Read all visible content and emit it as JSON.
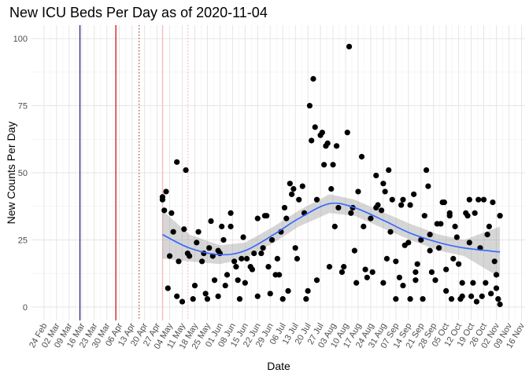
{
  "chart_data": {
    "type": "scatter",
    "title": "New ICU Beds Per Day as of 2020-11-04",
    "x_label": "Date",
    "y_label": "New Counts Per Day",
    "grid": true,
    "color": "#000000",
    "xlim": [
      "17 Feb",
      "18 Nov"
    ],
    "xticks": [
      "24 Feb",
      "02 Mar",
      "09 Mar",
      "16 Mar",
      "23 Mar",
      "30 Mar",
      "06 Apr",
      "13 Apr",
      "20 Apr",
      "27 Apr",
      "04 May",
      "11 May",
      "18 May",
      "25 May",
      "01 Jun",
      "08 Jun",
      "15 Jun",
      "22 Jun",
      "29 Jun",
      "06 Jul",
      "13 Jul",
      "20 Jul",
      "27 Jul",
      "03 Aug",
      "10 Aug",
      "17 Aug",
      "24 Aug",
      "31 Aug",
      "07 Sep",
      "14 Sep",
      "21 Sep",
      "28 Sep",
      "05 Oct",
      "12 Oct",
      "19 Oct",
      "26 Oct",
      "02 Nov",
      "09 Nov",
      "16 Nov"
    ],
    "ylim": [
      -5,
      105
    ],
    "yticks": [
      0,
      25,
      50,
      75,
      100
    ],
    "x": [
      "30 Apr",
      "30 Apr",
      "1 May",
      "2 May",
      "4 May",
      "3 May",
      "5 May",
      "6 May",
      "8 May",
      "8 May",
      "9 May",
      "11 May",
      "12 May",
      "13 May",
      "14 May",
      "15 May",
      "17 May",
      "18 May",
      "19 May",
      "20 May",
      "22 May",
      "23 May",
      "24 May",
      "25 May",
      "26 May",
      "27 May",
      "28 May",
      "29 May",
      "31 May",
      "31 May",
      "1 Jun",
      "2 Jun",
      "3 Jun",
      "4 Jun",
      "5 Jun",
      "7 Jun",
      "7 Jun",
      "9 Jun",
      "10 Jun",
      "11 Jun",
      "12 Jun",
      "13 Jun",
      "14 Jun",
      "15 Jun",
      "16 Jun",
      "18 Jun",
      "19 Jun",
      "20 Jun",
      "22 Jun",
      "22 Jun",
      "24 Jun",
      "25 Jun",
      "26 Jun",
      "27 Jun",
      "28 Jun",
      "29 Jun",
      "30 Jun",
      "2 Jul",
      "3 Jul",
      "4 Jul",
      "5 Jul",
      "6 Jul",
      "7 Jul",
      "8 Jul",
      "9 Jul",
      "10 Jul",
      "11 Jul",
      "12 Jul",
      "13 Jul",
      "14 Jul",
      "15 Jul",
      "17 Jul",
      "18 Jul",
      "19 Jul",
      "20 Jul",
      "21 Jul",
      "22 Jul",
      "23 Jul",
      "24 Jul",
      "25 Jul",
      "25 Jul",
      "27 Jul",
      "28 Jul",
      "29 Jul",
      "30 Jul",
      "31 Jul",
      "1 Aug",
      "2 Aug",
      "3 Aug",
      "4 Aug",
      "5 Aug",
      "6 Aug",
      "8 Aug",
      "9 Aug",
      "11 Aug",
      "12 Aug",
      "13 Aug",
      "14 Aug",
      "15 Aug",
      "16 Aug",
      "17 Aug",
      "19 Aug",
      "20 Aug",
      "21 Aug",
      "22 Aug",
      "24 Aug",
      "25 Aug",
      "27 Aug",
      "27 Aug",
      "28 Aug",
      "30 Aug",
      "31 Aug",
      "31 Aug",
      "1 Sep",
      "2 Sep",
      "3 Sep",
      "4 Sep",
      "5 Sep",
      "7 Sep",
      "7 Sep",
      "9 Sep",
      "10 Sep",
      "11 Sep",
      "11 Sep",
      "12 Sep",
      "14 Sep",
      "15 Sep",
      "15 Sep",
      "17 Sep",
      "18 Sep",
      "18 Sep",
      "19 Sep",
      "21 Sep",
      "22 Sep",
      "23 Sep",
      "24 Sep",
      "25 Sep",
      "26 Sep",
      "26 Sep",
      "27 Sep",
      "29 Sep",
      "30 Sep",
      "1 Oct",
      "2 Oct",
      "3 Oct",
      "4 Oct",
      "5 Oct",
      "5 Oct",
      "7 Oct",
      "7 Oct",
      "8 Oct",
      "9 Oct",
      "10 Oct",
      "11 Oct",
      "12 Oct",
      "13 Oct",
      "14 Oct",
      "14 Oct",
      "16 Oct",
      "17 Oct",
      "18 Oct",
      "18 Oct",
      "19 Oct",
      "20 Oct",
      "21 Oct",
      "22 Oct",
      "23 Oct",
      "24 Oct",
      "25 Oct",
      "26 Oct",
      "27 Oct",
      "28 Oct",
      "29 Oct",
      "30 Oct",
      "31 Oct",
      "1 Nov",
      "2 Nov",
      "2 Nov",
      "3 Nov",
      "4 Nov",
      "4 Nov",
      "4 Nov"
    ],
    "values": [
      40,
      41,
      36,
      43,
      19,
      7,
      35,
      28,
      4,
      54,
      17,
      2,
      29,
      51,
      20,
      19,
      3,
      8,
      24,
      28,
      17,
      20,
      5,
      3,
      22,
      32,
      19,
      10,
      21,
      4,
      20,
      30,
      25,
      8,
      12,
      35,
      30,
      17,
      15,
      10,
      3,
      18,
      26,
      9,
      18,
      15,
      14,
      20,
      33,
      4,
      20,
      22,
      34,
      34,
      15,
      5,
      25,
      12,
      18,
      12,
      28,
      3,
      37,
      33,
      6,
      46,
      42,
      44,
      22,
      18,
      40,
      45,
      35,
      3,
      6,
      75,
      62,
      85,
      67,
      40,
      10,
      64,
      65,
      53,
      60,
      61,
      15,
      44,
      53,
      30,
      60,
      37,
      13,
      15,
      65,
      97,
      35,
      37,
      21,
      9,
      43,
      56,
      30,
      14,
      11,
      33,
      13,
      37,
      49,
      38,
      36,
      9,
      46,
      43,
      18,
      51,
      28,
      40,
      17,
      3,
      11,
      38,
      40,
      8,
      23,
      24,
      3,
      38,
      42,
      13,
      10,
      16,
      25,
      3,
      34,
      51,
      45,
      27,
      21,
      13,
      10,
      31,
      22,
      31,
      39,
      39,
      14,
      6,
      35,
      34,
      3,
      18,
      30,
      26,
      16,
      3,
      4,
      9,
      35,
      34,
      24,
      40,
      4,
      9,
      35,
      2,
      40,
      22,
      4,
      40,
      9,
      27,
      30,
      5,
      39,
      17,
      12,
      7,
      3,
      34,
      1,
      34
    ],
    "smooth": {
      "color": "#3366ff",
      "band_color": "#999999",
      "x": [
        "30 Apr",
        "15 May",
        "1 Jun",
        "15 Jun",
        "1 Jul",
        "15 Jul",
        "1 Aug",
        "15 Aug",
        "1 Sep",
        "15 Sep",
        "1 Oct",
        "15 Oct",
        "4 Nov"
      ],
      "values": [
        27,
        22,
        19.5,
        21,
        27,
        33,
        38.5,
        37,
        32,
        27.5,
        24,
        22,
        20.5
      ],
      "lower": [
        18,
        17,
        16,
        18,
        24,
        30,
        35,
        34,
        29,
        25,
        21,
        19,
        11
      ],
      "upper": [
        36,
        27,
        23,
        24,
        30,
        36,
        42,
        40,
        35,
        31,
        27,
        25,
        30
      ]
    },
    "vlines": [
      {
        "x": "15 Mar",
        "color": "#1a1a6e",
        "dash": false
      },
      {
        "x": "4 Apr",
        "color": "#cc0000",
        "dash": false
      },
      {
        "x": "17 Apr",
        "color": "#a0522d",
        "dash": true
      },
      {
        "x": "30 Apr",
        "color": "#ffb6c1",
        "dash": false
      },
      {
        "x": "14 May",
        "color": "#ffb6c1",
        "dash": true
      }
    ]
  }
}
